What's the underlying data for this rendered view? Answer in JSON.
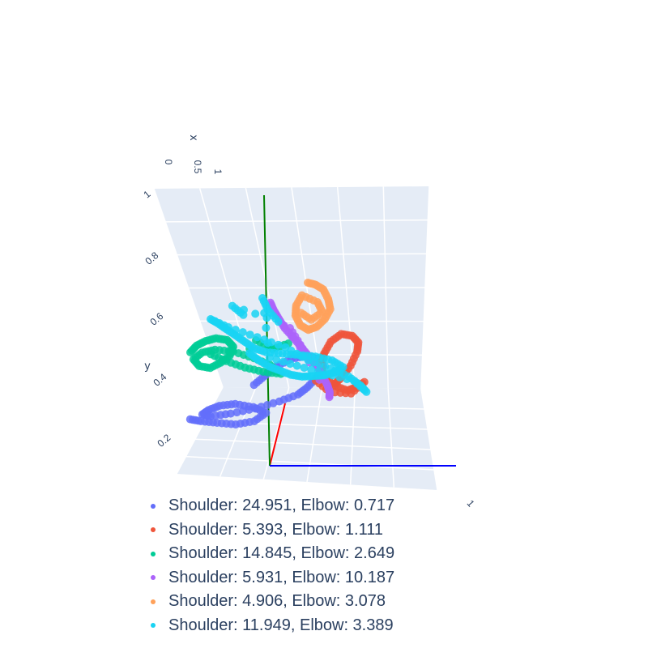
{
  "chart_data": {
    "type": "scatter",
    "dimensions": 3,
    "axes": {
      "x": {
        "title": "x",
        "ticks": [
          "0",
          "0.5",
          "1"
        ]
      },
      "y": {
        "title": "y",
        "ticks": [
          "0.2",
          "0.4",
          "0.6",
          "0.8",
          "1"
        ]
      },
      "z": {
        "ticks": [
          "1"
        ]
      }
    },
    "grid": true,
    "legend_position": "bottom",
    "reference_lines": [
      {
        "color": "#ff0000",
        "from": [
          0,
          0,
          0
        ],
        "to": [
          1,
          0,
          0
        ]
      },
      {
        "color": "#008000",
        "from": [
          0,
          0,
          0
        ],
        "to": [
          0,
          1,
          0
        ]
      },
      {
        "color": "#0000ff",
        "from": [
          0,
          0,
          0
        ],
        "to": [
          0,
          0,
          1
        ]
      }
    ],
    "series": [
      {
        "name": "Shoulder: 24.951, Elbow: 0.717",
        "color": "#636efa",
        "points": [
          [
            0.08,
            0.14,
            0.02
          ],
          [
            0.12,
            0.13,
            0.05
          ],
          [
            0.18,
            0.12,
            0.1
          ],
          [
            0.25,
            0.11,
            0.15
          ],
          [
            0.32,
            0.12,
            0.2
          ],
          [
            0.36,
            0.15,
            0.26
          ],
          [
            0.3,
            0.17,
            0.32
          ],
          [
            0.22,
            0.18,
            0.36
          ],
          [
            0.15,
            0.17,
            0.4
          ],
          [
            0.1,
            0.15,
            0.44
          ],
          [
            0.07,
            0.13,
            0.47
          ],
          [
            0.1,
            0.12,
            0.5
          ],
          [
            0.18,
            0.13,
            0.52
          ],
          [
            0.28,
            0.15,
            0.53
          ],
          [
            0.38,
            0.18,
            0.52
          ],
          [
            0.46,
            0.21,
            0.5
          ],
          [
            0.5,
            0.24,
            0.48
          ],
          [
            0.54,
            0.28,
            0.46
          ],
          [
            0.57,
            0.33,
            0.45
          ],
          [
            0.56,
            0.36,
            0.4
          ],
          [
            0.52,
            0.38,
            0.35
          ],
          [
            0.46,
            0.37,
            0.3
          ],
          [
            0.4,
            0.34,
            0.28
          ],
          [
            0.35,
            0.3,
            0.3
          ],
          [
            0.3,
            0.26,
            0.34
          ]
        ]
      },
      {
        "name": "Shoulder: 5.393, Elbow: 1.111",
        "color": "#ef553b",
        "points": [
          [
            0.55,
            0.22,
            0.92
          ],
          [
            0.58,
            0.25,
            0.93
          ],
          [
            0.62,
            0.3,
            0.92
          ],
          [
            0.65,
            0.36,
            0.9
          ],
          [
            0.66,
            0.4,
            0.86
          ],
          [
            0.64,
            0.43,
            0.82
          ],
          [
            0.6,
            0.44,
            0.78
          ],
          [
            0.56,
            0.41,
            0.76
          ],
          [
            0.53,
            0.36,
            0.78
          ],
          [
            0.51,
            0.31,
            0.82
          ],
          [
            0.52,
            0.26,
            0.86
          ],
          [
            0.56,
            0.22,
            0.88
          ],
          [
            0.61,
            0.2,
            0.9
          ],
          [
            0.64,
            0.21,
            0.94
          ],
          [
            0.67,
            0.23,
            0.97
          ],
          [
            0.63,
            0.19,
            0.86
          ],
          [
            0.55,
            0.2,
            0.8
          ],
          [
            0.5,
            0.25,
            0.75
          ]
        ]
      },
      {
        "name": "Shoulder: 14.845, Elbow: 2.649",
        "color": "#00cc96",
        "points": [
          [
            0.05,
            0.4,
            0.25
          ],
          [
            0.08,
            0.43,
            0.22
          ],
          [
            0.12,
            0.45,
            0.2
          ],
          [
            0.16,
            0.46,
            0.22
          ],
          [
            0.2,
            0.45,
            0.26
          ],
          [
            0.22,
            0.42,
            0.3
          ],
          [
            0.2,
            0.38,
            0.34
          ],
          [
            0.16,
            0.35,
            0.36
          ],
          [
            0.12,
            0.33,
            0.34
          ],
          [
            0.08,
            0.34,
            0.3
          ],
          [
            0.06,
            0.37,
            0.27
          ],
          [
            0.1,
            0.4,
            0.24
          ],
          [
            0.15,
            0.41,
            0.26
          ],
          [
            0.22,
            0.4,
            0.3
          ],
          [
            0.3,
            0.37,
            0.34
          ],
          [
            0.36,
            0.34,
            0.38
          ],
          [
            0.4,
            0.3,
            0.42
          ],
          [
            0.33,
            0.31,
            0.4
          ],
          [
            0.26,
            0.33,
            0.36
          ],
          [
            0.19,
            0.36,
            0.31
          ],
          [
            0.13,
            0.39,
            0.28
          ],
          [
            0.42,
            0.42,
            0.5
          ],
          [
            0.36,
            0.4,
            0.46
          ],
          [
            0.3,
            0.44,
            0.4
          ]
        ]
      },
      {
        "name": "Shoulder: 5.931, Elbow: 10.187",
        "color": "#ab63fa",
        "points": [
          [
            0.33,
            0.58,
            0.62
          ],
          [
            0.34,
            0.55,
            0.64
          ],
          [
            0.36,
            0.51,
            0.66
          ],
          [
            0.38,
            0.47,
            0.69
          ],
          [
            0.41,
            0.43,
            0.72
          ],
          [
            0.44,
            0.39,
            0.74
          ],
          [
            0.47,
            0.35,
            0.76
          ],
          [
            0.5,
            0.31,
            0.78
          ],
          [
            0.52,
            0.27,
            0.79
          ],
          [
            0.54,
            0.23,
            0.8
          ],
          [
            0.55,
            0.2,
            0.8
          ],
          [
            0.55,
            0.18,
            0.79
          ],
          [
            0.4,
            0.47,
            0.7
          ],
          [
            0.44,
            0.4,
            0.72
          ],
          [
            0.47,
            0.34,
            0.74
          ],
          [
            0.35,
            0.53,
            0.64
          ]
        ]
      },
      {
        "name": "Shoulder: 4.906, Elbow: 3.078",
        "color": "#ffa15a",
        "points": [
          [
            0.46,
            0.65,
            0.8
          ],
          [
            0.49,
            0.64,
            0.82
          ],
          [
            0.52,
            0.62,
            0.83
          ],
          [
            0.54,
            0.58,
            0.83
          ],
          [
            0.55,
            0.54,
            0.82
          ],
          [
            0.53,
            0.5,
            0.8
          ],
          [
            0.5,
            0.47,
            0.77
          ],
          [
            0.47,
            0.46,
            0.74
          ],
          [
            0.44,
            0.48,
            0.72
          ],
          [
            0.42,
            0.52,
            0.72
          ],
          [
            0.42,
            0.56,
            0.74
          ],
          [
            0.44,
            0.6,
            0.77
          ],
          [
            0.5,
            0.57,
            0.8
          ],
          [
            0.52,
            0.53,
            0.8
          ],
          [
            0.48,
            0.5,
            0.76
          ],
          [
            0.44,
            0.53,
            0.74
          ]
        ]
      },
      {
        "name": "Shoulder: 11.949, Elbow: 3.389",
        "color": "#19d3f3",
        "points": [
          [
            0.26,
            0.38,
            0.5
          ],
          [
            0.29,
            0.35,
            0.54
          ],
          [
            0.33,
            0.32,
            0.58
          ],
          [
            0.37,
            0.3,
            0.62
          ],
          [
            0.41,
            0.28,
            0.66
          ],
          [
            0.45,
            0.27,
            0.7
          ],
          [
            0.49,
            0.27,
            0.74
          ],
          [
            0.53,
            0.27,
            0.78
          ],
          [
            0.57,
            0.28,
            0.82
          ],
          [
            0.6,
            0.3,
            0.84
          ],
          [
            0.56,
            0.33,
            0.8
          ],
          [
            0.5,
            0.35,
            0.74
          ],
          [
            0.44,
            0.36,
            0.68
          ],
          [
            0.38,
            0.37,
            0.62
          ],
          [
            0.32,
            0.38,
            0.56
          ],
          [
            0.28,
            0.4,
            0.5
          ],
          [
            0.25,
            0.43,
            0.44
          ],
          [
            0.22,
            0.46,
            0.38
          ],
          [
            0.19,
            0.49,
            0.32
          ],
          [
            0.16,
            0.52,
            0.26
          ],
          [
            0.14,
            0.54,
            0.2
          ],
          [
            0.2,
            0.5,
            0.3
          ],
          [
            0.3,
            0.45,
            0.44
          ],
          [
            0.4,
            0.4,
            0.56
          ],
          [
            0.48,
            0.34,
            0.66
          ],
          [
            0.56,
            0.3,
            0.76
          ],
          [
            0.62,
            0.26,
            0.86
          ],
          [
            0.66,
            0.22,
            0.92
          ],
          [
            0.68,
            0.19,
            0.96
          ],
          [
            0.64,
            0.24,
            0.88
          ],
          [
            0.54,
            0.28,
            0.74
          ],
          [
            0.44,
            0.32,
            0.62
          ],
          [
            0.34,
            0.36,
            0.52
          ],
          [
            0.3,
            0.6,
            0.6
          ],
          [
            0.32,
            0.55,
            0.62
          ],
          [
            0.36,
            0.5,
            0.64
          ],
          [
            0.2,
            0.58,
            0.42
          ],
          [
            0.24,
            0.54,
            0.46
          ]
        ]
      }
    ]
  }
}
